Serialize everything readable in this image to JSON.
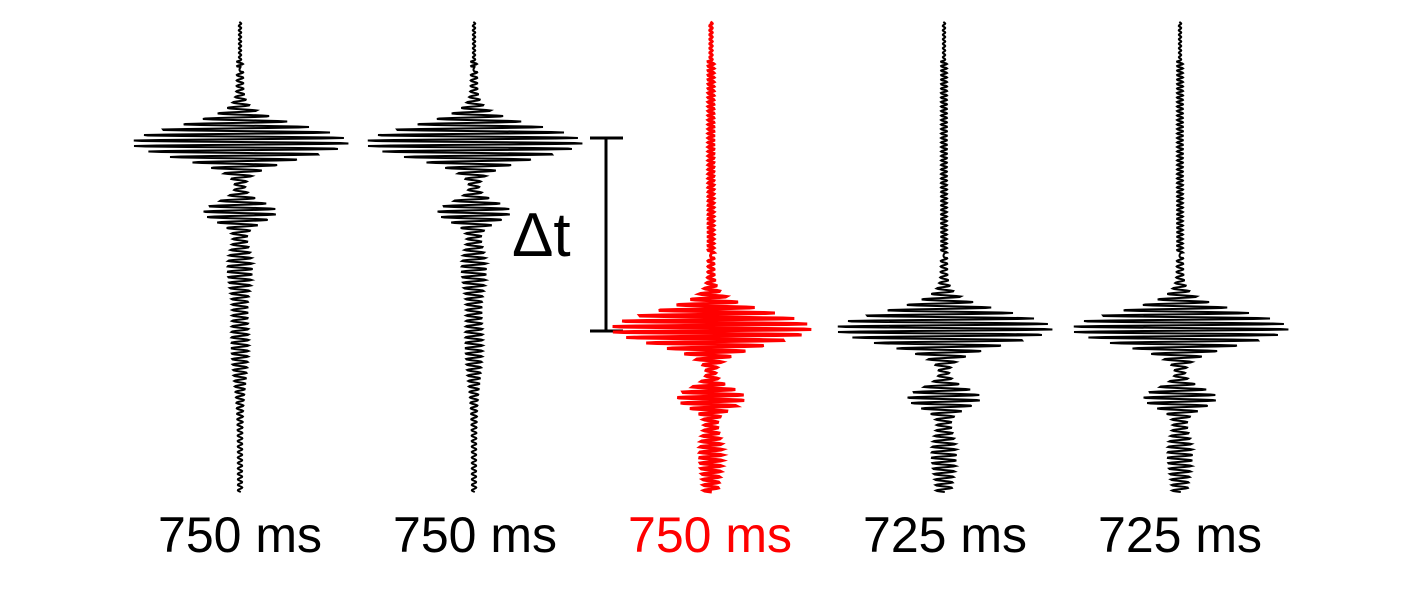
{
  "figure": {
    "delta_label": "Δt",
    "colors": {
      "default": "#000000",
      "highlight": "#ff0000"
    },
    "traces": [
      {
        "label": "750 ms",
        "highlighted": false,
        "shift": "early"
      },
      {
        "label": "750 ms",
        "highlighted": false,
        "shift": "early"
      },
      {
        "label": "750 ms",
        "highlighted": true,
        "shift": "late"
      },
      {
        "label": "725 ms",
        "highlighted": false,
        "shift": "late"
      },
      {
        "label": "725 ms",
        "highlighted": false,
        "shift": "late"
      }
    ]
  }
}
